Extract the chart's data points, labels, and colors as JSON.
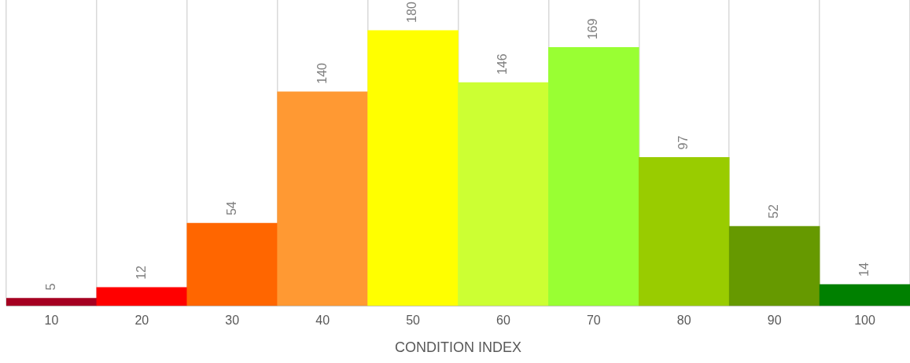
{
  "chart_data": {
    "type": "bar",
    "xlabel": "CONDITION INDEX",
    "categories": [
      "10",
      "20",
      "30",
      "40",
      "50",
      "60",
      "70",
      "80",
      "90",
      "100"
    ],
    "values": [
      5,
      12,
      54,
      140,
      180,
      146,
      169,
      97,
      52,
      14
    ],
    "colors": [
      "#a50021",
      "#ff0000",
      "#ff6600",
      "#ff9933",
      "#ffff00",
      "#ccff33",
      "#99ff33",
      "#99cc00",
      "#669900",
      "#008000"
    ],
    "data_labels": true,
    "grid": "x",
    "legend": false
  }
}
